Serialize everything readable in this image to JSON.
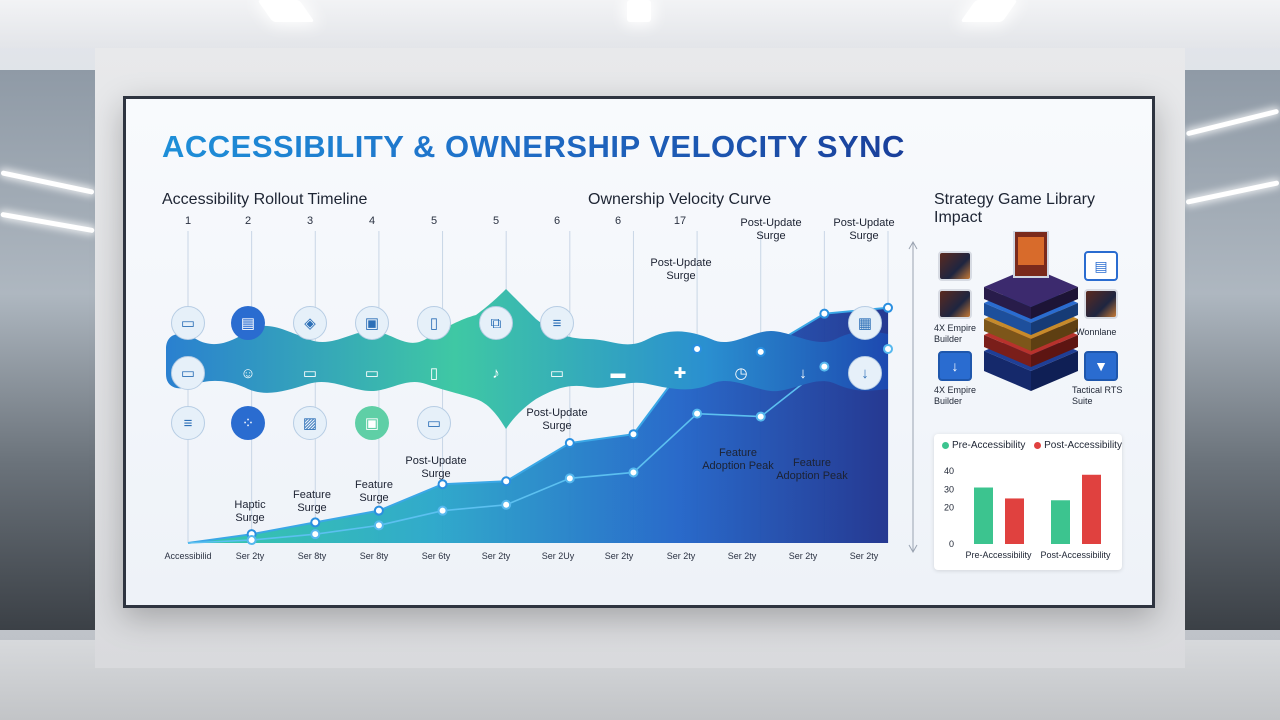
{
  "title": "ACCESSIBILITY & OWNERSHIP VELOCITY SYNC",
  "timeline": {
    "title": "Accessibility Rollout Timeline",
    "top_ticks": [
      "1",
      "2",
      "3",
      "4",
      "5",
      "5",
      "6",
      "6",
      "17"
    ],
    "bottom_ticks": [
      "Accessibilid",
      "Ser 2ty",
      "Ser 8ty",
      "Ser 8ty",
      "Ser 6ty",
      "Ser 2ty",
      "Ser 2Uy",
      "Ser 2ty",
      "Ser 2ty",
      "Ser 2ty",
      "Ser 2ty",
      "Ser 2ty"
    ],
    "node_icons": {
      "top": [
        "monitor-icon",
        "store-icon",
        "controller-icon",
        "document-icon",
        "file-icon",
        "link-icon",
        "list-icon"
      ],
      "track": [
        "monitor-icon",
        "user-icon",
        "monitor-icon",
        "monitor-icon",
        "file-icon",
        "microphone-icon",
        "monitor-icon",
        "keyboard-icon",
        "gamepad-icon",
        "clock-icon",
        "download-icon",
        "download-icon"
      ],
      "bottom": [
        "list-icon",
        "group-icon",
        "image-icon",
        "document-icon",
        "display-icon"
      ]
    }
  },
  "velocity": {
    "title": "Ownership Velocity Curve",
    "top_ticks": [
      "6",
      "17"
    ],
    "annotations": [
      {
        "text": "Haptic\nSurge"
      },
      {
        "text": "Feature\nSurge"
      },
      {
        "text": "Feature\nSurge"
      },
      {
        "text": "Post-Update\nSurge"
      },
      {
        "text": "Post-Update\nSurge"
      },
      {
        "text": "Post-Update\nSurge"
      },
      {
        "text": "Post-Update\nSurge"
      },
      {
        "text": "Post-Update\nSurge"
      },
      {
        "text": "Feature\nAdoption Peak"
      },
      {
        "text": "Feature\nAdoption Peak"
      }
    ]
  },
  "chart_data": [
    {
      "type": "area",
      "title": "Ownership Velocity Curve",
      "x": [
        1,
        2,
        3,
        4,
        5,
        6,
        7,
        8,
        9,
        10,
        11,
        12
      ],
      "series": [
        {
          "values": [
            0,
            3,
            7,
            11,
            20,
            21,
            34,
            37,
            66,
            65,
            78,
            80
          ]
        },
        {
          "values": [
            0,
            1,
            3,
            6,
            11,
            13,
            22,
            24,
            44,
            43,
            60,
            66
          ]
        }
      ],
      "ylim": [
        0,
        100
      ]
    },
    {
      "type": "bar",
      "categories": [
        "Pre-Accessibility",
        "Post-Accessibility"
      ],
      "series": [
        {
          "name": "Pre-Accessibility",
          "color": "#3cc48f",
          "values": [
            31,
            24
          ]
        },
        {
          "name": "Post-Accessibility",
          "color": "#e0413f",
          "values": [
            25,
            38
          ]
        }
      ],
      "yticks": [
        "0",
        "20",
        "30",
        "40"
      ],
      "ylim": [
        0,
        45
      ],
      "legend": "top"
    }
  ],
  "library": {
    "title": "Strategy Game Library Impact",
    "items": [
      {
        "label": "4X Empire\nBuilder",
        "kind": "game"
      },
      {
        "label": "Wonnlane",
        "kind": "game"
      },
      {
        "label": "4X Empire\nBuilder",
        "kind": "icon"
      },
      {
        "label": "Tactical RTS\nSuite",
        "kind": "icon"
      }
    ]
  },
  "colors": {
    "accent": "#1f6fc8",
    "teal": "#2fc3a0",
    "navy": "#1a2f8a",
    "green": "#3cc48f",
    "red": "#e0413f"
  }
}
